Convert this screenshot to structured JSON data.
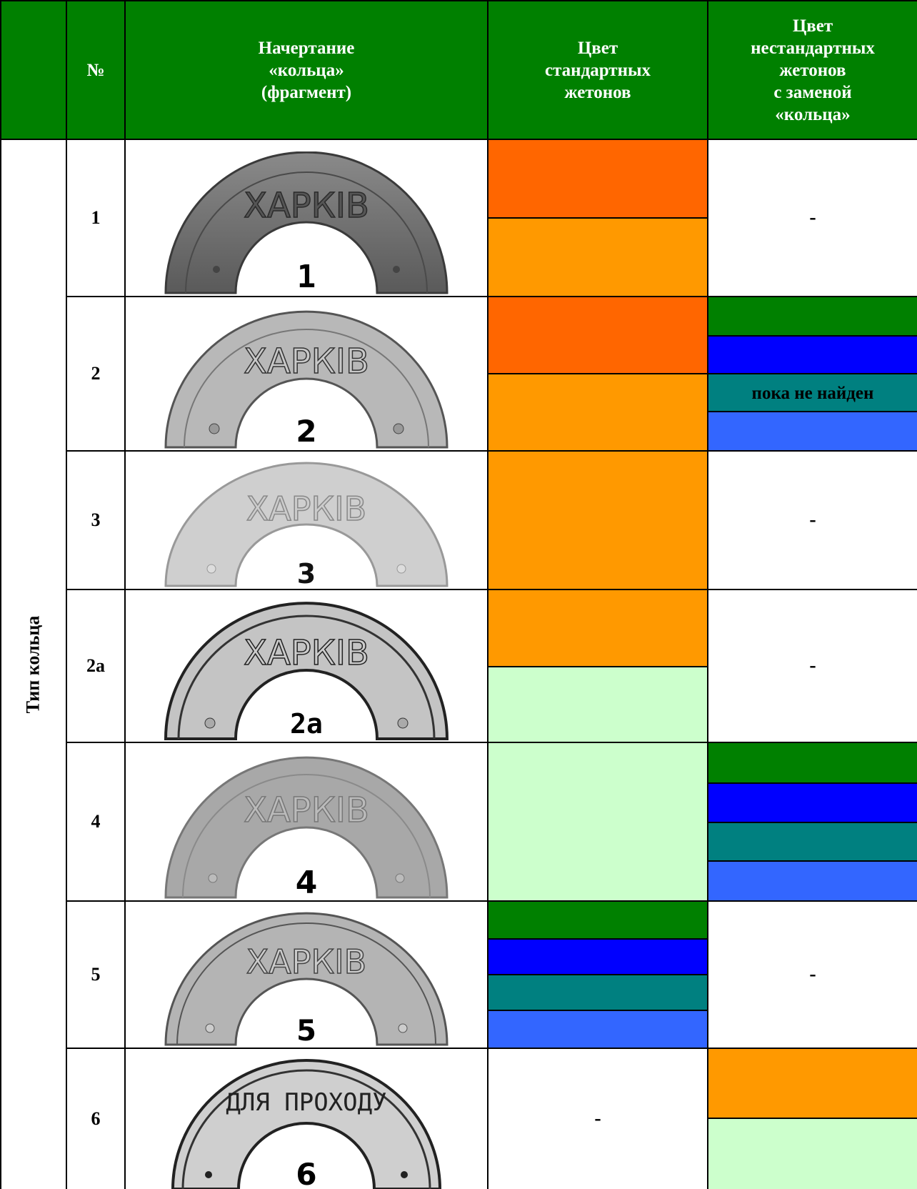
{
  "header": {
    "col_no": "№",
    "col_style": "Начертание\n«кольца»\n(фрагмент)",
    "col_standard": "Цвет\nстандартных\nжетонов",
    "col_nonstandard": "Цвет\nнестандартных\nжетонов\nс заменой\n«кольца»"
  },
  "side_label": "Тип кольца",
  "colors": {
    "header_green": "#008000",
    "red_orange": "#ff6600",
    "orange": "#ff9900",
    "green": "#008000",
    "blue": "#0000ff",
    "teal": "#008080",
    "light_blue": "#3366ff",
    "light_green": "#ccffcc"
  },
  "rows": [
    {
      "no": "1",
      "ring_text": "ХАРКІВ",
      "ring_number": "1",
      "nonstandard_text": "-"
    },
    {
      "no": "2",
      "ring_text": "ХАРКІВ",
      "ring_number": "2",
      "not_found": "пока не найден"
    },
    {
      "no": "3",
      "ring_text": "ХАРКІВ",
      "ring_number": "3",
      "nonstandard_text": "-"
    },
    {
      "no": "2а",
      "ring_text": "ХАРКІВ",
      "ring_number": "2а",
      "nonstandard_text": "-"
    },
    {
      "no": "4",
      "ring_text": "ХАРКІВ",
      "ring_number": "4"
    },
    {
      "no": "5",
      "ring_text": "ХАРКІВ",
      "ring_number": "5",
      "nonstandard_text": "-"
    },
    {
      "no": "6",
      "ring_text": "ДЛЯ ПРОХОДУ",
      "ring_number": "6",
      "standard_text": "-"
    }
  ]
}
